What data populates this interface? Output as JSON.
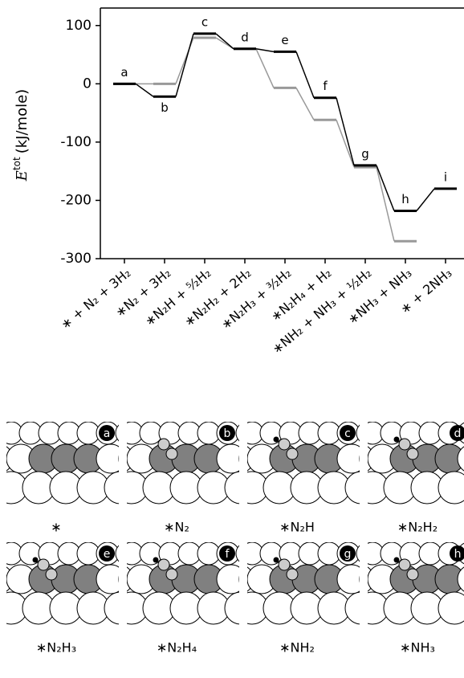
{
  "chart_data": {
    "type": "energy-level",
    "ylabel_symbol": "E",
    "ylabel_sup": "tot",
    "ylabel_unit": "(kJ/mole)",
    "categories": [
      "∗ + N₂ + 3H₂",
      "∗N₂ + 3H₂",
      "∗N₂H + ⁵⁄₂H₂",
      "∗N₂H₂ + 2H₂",
      "∗N₂H₃ + ³⁄₂H₂",
      "∗N₂H₄ + H₂",
      "∗NH₂ + NH₃ + ½H₂",
      "∗NH₃ + NH₃",
      "∗ + 2NH₃"
    ],
    "annotations": [
      "a",
      "b",
      "c",
      "d",
      "e",
      "f",
      "g",
      "h",
      "i"
    ],
    "series": [
      {
        "color": "#999999",
        "values": [
          0,
          0,
          79,
          60,
          -7,
          -62,
          -143,
          -270,
          null
        ]
      },
      {
        "color": "#000000",
        "values": [
          0,
          -22,
          86,
          60,
          55,
          -24,
          -140,
          -218,
          -180
        ]
      }
    ],
    "ylim": [
      -300,
      130
    ],
    "yticks": [
      -300,
      -200,
      -100,
      0,
      100
    ]
  },
  "panels": [
    {
      "badge": "a",
      "caption": "∗"
    },
    {
      "badge": "b",
      "caption": "∗N₂"
    },
    {
      "badge": "c",
      "caption": "∗N₂H"
    },
    {
      "badge": "d",
      "caption": "∗N₂H₂"
    },
    {
      "badge": "e",
      "caption": "∗N₂H₃"
    },
    {
      "badge": "f",
      "caption": "∗N₂H₄"
    },
    {
      "badge": "g",
      "caption": "∗NH₂"
    },
    {
      "badge": "h",
      "caption": "∗NH₃"
    }
  ]
}
